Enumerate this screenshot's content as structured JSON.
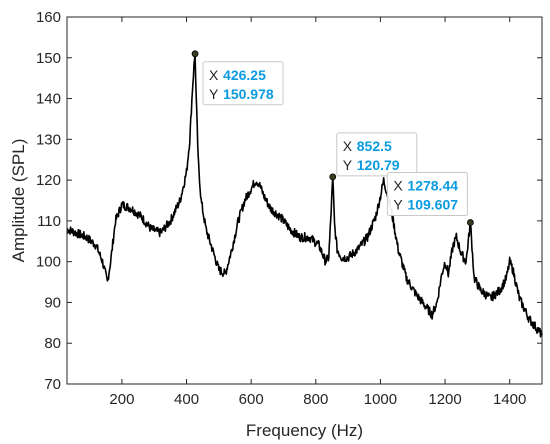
{
  "chart_data": {
    "type": "line",
    "xlabel": "Frequency (Hz)",
    "ylabel": "Amplitude (SPL)",
    "xlim": [
      30,
      1500
    ],
    "ylim": [
      70,
      160
    ],
    "xticks": [
      200,
      400,
      600,
      800,
      1000,
      1200,
      1400
    ],
    "yticks": [
      70,
      80,
      90,
      100,
      110,
      120,
      130,
      140,
      150,
      160
    ],
    "grid": false,
    "line_color": "#000000",
    "series": [
      {
        "x": [
          30,
          60,
          90,
          120,
          140,
          155,
          165,
          180,
          200,
          230,
          260,
          290,
          320,
          350,
          380,
          400,
          410,
          418,
          423,
          426.25,
          430,
          436,
          445,
          460,
          480,
          500,
          520,
          540,
          560,
          580,
          600,
          615,
          625,
          640,
          660,
          690,
          720,
          750,
          780,
          810,
          830,
          840,
          846,
          852.5,
          858,
          866,
          880,
          900,
          930,
          960,
          985,
          1000,
          1010,
          1020,
          1035,
          1055,
          1080,
          1110,
          1140,
          1160,
          1175,
          1190,
          1200,
          1210,
          1225,
          1235,
          1250,
          1265,
          1278.44,
          1290,
          1310,
          1340,
          1370,
          1390,
          1400,
          1410,
          1430,
          1460,
          1480,
          1500
        ],
        "y": [
          108,
          107,
          106,
          104,
          100,
          95,
          100,
          110,
          114,
          113,
          111,
          108,
          107,
          110,
          115,
          122,
          130,
          142,
          148,
          150.978,
          140,
          125,
          115,
          108,
          103,
          98,
          97,
          103,
          110,
          115,
          118,
          120,
          119,
          116,
          113,
          111,
          108,
          106,
          106,
          104,
          100,
          101,
          110,
          120.79,
          109,
          103,
          101,
          101,
          103,
          106,
          111,
          116,
          120,
          117,
          112,
          103,
          96,
          92,
          89,
          87,
          90,
          97,
          100,
          97,
          104,
          106,
          102,
          100,
          109.607,
          96,
          93,
          91,
          93,
          96,
          100,
          98,
          91,
          86,
          84,
          82
        ]
      }
    ],
    "datatips": [
      {
        "x_label": "X",
        "y_label": "Y",
        "x": 426.25,
        "y": 150.978,
        "x_text": "426.25",
        "y_text": "150.978"
      },
      {
        "x_label": "X",
        "y_label": "Y",
        "x": 852.5,
        "y": 120.79,
        "x_text": "852.5",
        "y_text": "120.79"
      },
      {
        "x_label": "X",
        "y_label": "Y",
        "x": 1278.44,
        "y": 109.607,
        "x_text": "1278.44",
        "y_text": "109.607"
      }
    ],
    "datatip_value_color": "#0b9be0",
    "datatip_marker_color": "#3a3a1e"
  }
}
